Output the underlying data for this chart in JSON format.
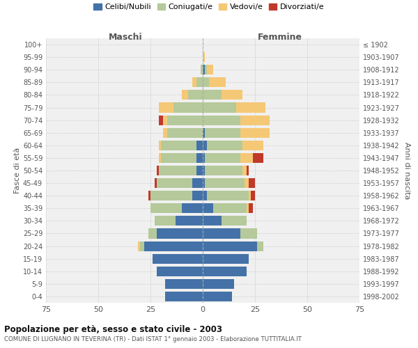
{
  "age_groups": [
    "0-4",
    "5-9",
    "10-14",
    "15-19",
    "20-24",
    "25-29",
    "30-34",
    "35-39",
    "40-44",
    "45-49",
    "50-54",
    "55-59",
    "60-64",
    "65-69",
    "70-74",
    "75-79",
    "80-84",
    "85-89",
    "90-94",
    "95-99",
    "100+"
  ],
  "birth_years": [
    "1998-2002",
    "1993-1997",
    "1988-1992",
    "1983-1987",
    "1978-1982",
    "1973-1977",
    "1968-1972",
    "1963-1967",
    "1958-1962",
    "1953-1957",
    "1948-1952",
    "1943-1947",
    "1938-1942",
    "1933-1937",
    "1928-1932",
    "1923-1927",
    "1918-1922",
    "1913-1917",
    "1908-1912",
    "1903-1907",
    "≤ 1902"
  ],
  "male": {
    "celibe": [
      18,
      18,
      22,
      24,
      28,
      22,
      13,
      10,
      5,
      5,
      3,
      3,
      3,
      0,
      0,
      0,
      0,
      0,
      0,
      0,
      0
    ],
    "coniugato": [
      0,
      0,
      0,
      0,
      2,
      4,
      10,
      15,
      20,
      17,
      18,
      17,
      17,
      17,
      17,
      14,
      7,
      3,
      1,
      0,
      0
    ],
    "vedovo": [
      0,
      0,
      0,
      0,
      1,
      0,
      0,
      0,
      0,
      0,
      0,
      1,
      1,
      2,
      2,
      7,
      3,
      2,
      0,
      0,
      0
    ],
    "divorziato": [
      0,
      0,
      0,
      0,
      0,
      0,
      0,
      0,
      1,
      1,
      1,
      0,
      0,
      0,
      2,
      0,
      0,
      0,
      0,
      0,
      0
    ]
  },
  "female": {
    "nubile": [
      14,
      15,
      21,
      22,
      26,
      18,
      9,
      5,
      2,
      1,
      1,
      1,
      2,
      1,
      0,
      0,
      0,
      0,
      1,
      0,
      0
    ],
    "coniugata": [
      0,
      0,
      0,
      0,
      3,
      8,
      12,
      16,
      20,
      19,
      18,
      17,
      17,
      17,
      18,
      16,
      9,
      3,
      1,
      0,
      0
    ],
    "vedova": [
      0,
      0,
      0,
      0,
      0,
      0,
      0,
      1,
      1,
      2,
      2,
      6,
      10,
      14,
      14,
      14,
      10,
      8,
      3,
      1,
      0
    ],
    "divorziata": [
      0,
      0,
      0,
      0,
      0,
      0,
      0,
      2,
      2,
      3,
      1,
      5,
      0,
      0,
      0,
      0,
      0,
      0,
      0,
      0,
      0
    ]
  },
  "colors": {
    "celibe": "#4472a8",
    "coniugato": "#b5c99a",
    "vedovo": "#f5c876",
    "divorziato": "#c0392b"
  },
  "legend_labels": [
    "Celibi/Nubili",
    "Coniugati/e",
    "Vedovi/e",
    "Divorziati/e"
  ],
  "title": "Popolazione per età, sesso e stato civile - 2003",
  "subtitle": "COMUNE DI LUGNANO IN TEVERINA (TR) - Dati ISTAT 1° gennaio 2003 - Elaborazione TUTTITALIA.IT",
  "ylabel_left": "Fasce di età",
  "ylabel_right": "Anni di nascita",
  "xlabel_maschi": "Maschi",
  "xlabel_femmine": "Femmine",
  "xlim": 75,
  "bg_color": "#ffffff",
  "grid_color": "#cccccc"
}
